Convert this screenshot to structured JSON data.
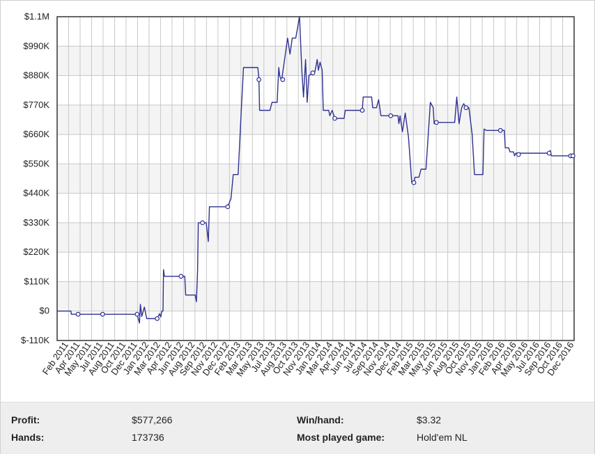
{
  "chart_data": {
    "type": "line",
    "title": "",
    "xlabel": "",
    "ylabel": "",
    "ylim": [
      -110000,
      1100000
    ],
    "grid": true,
    "y_ticks": [
      "$1.1M",
      "$990K",
      "$880K",
      "$770K",
      "$660K",
      "$550K",
      "$440K",
      "$330K",
      "$220K",
      "$110K",
      "$0",
      "$-110K"
    ],
    "x_ticks": [
      "Feb 2011",
      "Apr 2011",
      "May 2011",
      "Jul 2011",
      "Aug 2011",
      "Oct 2011",
      "Dec 2011",
      "Jan 2012",
      "Mar 2012",
      "Apr 2012",
      "Jun 2012",
      "Aug 2012",
      "Sep 2012",
      "Nov 2012",
      "Dec 2012",
      "Feb 2013",
      "Mar 2013",
      "May 2013",
      "Jul 2013",
      "Aug 2013",
      "Oct 2013",
      "Nov 2013",
      "Jan 2014",
      "Mar 2014",
      "Apr 2014",
      "Jun 2014",
      "Jul 2014",
      "Sep 2014",
      "Nov 2014",
      "Dec 2014",
      "Feb 2015",
      "Mar 2015",
      "May 2015",
      "Jun 2015",
      "Aug 2015",
      "Oct 2015",
      "Nov 2015",
      "Jan 2016",
      "Feb 2016",
      "Apr 2016",
      "May 2016",
      "Jul 2016",
      "Sep 2016",
      "Oct 2016",
      "Dec 2016"
    ],
    "series": [
      {
        "color": "#2e3192",
        "points": [
          [
            "2011-01-01",
            0
          ],
          [
            "2011-03-01",
            0
          ],
          [
            "2011-03-03",
            -12000
          ],
          [
            "2011-12-10",
            -12000
          ],
          [
            "2011-12-20",
            -45000
          ],
          [
            "2011-12-24",
            25000
          ],
          [
            "2011-12-30",
            -20000
          ],
          [
            "2012-01-10",
            15000
          ],
          [
            "2012-01-20",
            -28000
          ],
          [
            "2012-03-05",
            -28000
          ],
          [
            "2012-03-15",
            -10000
          ],
          [
            "2012-03-20",
            -22000
          ],
          [
            "2012-03-25",
            0
          ],
          [
            "2012-03-30",
            0
          ],
          [
            "2012-04-01",
            155000
          ],
          [
            "2012-04-05",
            130000
          ],
          [
            "2012-06-15",
            130000
          ],
          [
            "2012-07-01",
            130000
          ],
          [
            "2012-07-05",
            60000
          ],
          [
            "2012-08-15",
            60000
          ],
          [
            "2012-08-20",
            35000
          ],
          [
            "2012-08-25",
            150000
          ],
          [
            "2012-08-28",
            330000
          ],
          [
            "2012-10-01",
            330000
          ],
          [
            "2012-10-10",
            260000
          ],
          [
            "2012-10-15",
            390000
          ],
          [
            "2013-01-01",
            390000
          ],
          [
            "2013-01-15",
            420000
          ],
          [
            "2013-01-25",
            510000
          ],
          [
            "2013-02-15",
            510000
          ],
          [
            "2013-03-01",
            760000
          ],
          [
            "2013-03-10",
            910000
          ],
          [
            "2013-05-10",
            910000
          ],
          [
            "2013-05-15",
            870000
          ],
          [
            "2013-05-18",
            750000
          ],
          [
            "2013-07-01",
            750000
          ],
          [
            "2013-07-10",
            780000
          ],
          [
            "2013-08-01",
            780000
          ],
          [
            "2013-08-08",
            910000
          ],
          [
            "2013-08-12",
            880000
          ],
          [
            "2013-08-20",
            860000
          ],
          [
            "2013-09-15",
            1020000
          ],
          [
            "2013-09-25",
            960000
          ],
          [
            "2013-10-05",
            1020000
          ],
          [
            "2013-10-20",
            1020000
          ],
          [
            "2013-11-05",
            1100000
          ],
          [
            "2013-11-15",
            900000
          ],
          [
            "2013-11-22",
            800000
          ],
          [
            "2013-12-01",
            940000
          ],
          [
            "2013-12-08",
            780000
          ],
          [
            "2013-12-15",
            880000
          ],
          [
            "2014-01-01",
            890000
          ],
          [
            "2014-01-10",
            895000
          ],
          [
            "2014-01-20",
            940000
          ],
          [
            "2014-01-25",
            900000
          ],
          [
            "2014-02-01",
            930000
          ],
          [
            "2014-02-10",
            900000
          ],
          [
            "2014-02-15",
            750000
          ],
          [
            "2014-03-10",
            750000
          ],
          [
            "2014-03-15",
            730000
          ],
          [
            "2014-03-25",
            750000
          ],
          [
            "2014-04-05",
            720000
          ],
          [
            "2014-05-15",
            720000
          ],
          [
            "2014-05-20",
            750000
          ],
          [
            "2014-07-15",
            750000
          ],
          [
            "2014-08-01",
            750000
          ],
          [
            "2014-08-05",
            800000
          ],
          [
            "2014-09-10",
            800000
          ],
          [
            "2014-09-15",
            760000
          ],
          [
            "2014-10-01",
            760000
          ],
          [
            "2014-10-10",
            790000
          ],
          [
            "2014-10-20",
            730000
          ],
          [
            "2014-12-20",
            730000
          ],
          [
            "2015-01-01",
            730000
          ],
          [
            "2015-01-05",
            700000
          ],
          [
            "2015-01-10",
            730000
          ],
          [
            "2015-01-20",
            670000
          ],
          [
            "2015-02-01",
            740000
          ],
          [
            "2015-02-15",
            650000
          ],
          [
            "2015-03-01",
            480000
          ],
          [
            "2015-03-10",
            475000
          ],
          [
            "2015-03-15",
            500000
          ],
          [
            "2015-04-01",
            500000
          ],
          [
            "2015-04-10",
            530000
          ],
          [
            "2015-05-01",
            530000
          ],
          [
            "2015-05-20",
            780000
          ],
          [
            "2015-06-01",
            760000
          ],
          [
            "2015-06-05",
            700000
          ],
          [
            "2015-06-15",
            705000
          ],
          [
            "2015-09-01",
            705000
          ],
          [
            "2015-09-10",
            800000
          ],
          [
            "2015-09-20",
            700000
          ],
          [
            "2015-10-01",
            760000
          ],
          [
            "2015-10-10",
            775000
          ],
          [
            "2015-10-20",
            760000
          ],
          [
            "2015-11-01",
            760000
          ],
          [
            "2015-11-15",
            660000
          ],
          [
            "2015-11-25",
            510000
          ],
          [
            "2015-12-31",
            510000
          ],
          [
            "2016-01-05",
            680000
          ],
          [
            "2016-01-15",
            675000
          ],
          [
            "2016-03-15",
            675000
          ],
          [
            "2016-04-01",
            675000
          ],
          [
            "2016-04-05",
            610000
          ],
          [
            "2016-04-20",
            610000
          ],
          [
            "2016-04-25",
            595000
          ],
          [
            "2016-05-10",
            595000
          ],
          [
            "2016-05-15",
            580000
          ],
          [
            "2016-05-20",
            590000
          ],
          [
            "2016-06-01",
            590000
          ],
          [
            "2016-10-10",
            590000
          ],
          [
            "2016-10-15",
            600000
          ],
          [
            "2016-10-20",
            580000
          ],
          [
            "2016-12-31",
            580000
          ],
          [
            "2017-01-20",
            577266
          ]
        ],
        "markers": [
          [
            "2011-04-01",
            -12000
          ],
          [
            "2011-07-15",
            -12000
          ],
          [
            "2011-12-10",
            -12000
          ],
          [
            "2012-03-05",
            -28000
          ],
          [
            "2012-06-15",
            130000
          ],
          [
            "2012-09-15",
            330000
          ],
          [
            "2013-01-01",
            390000
          ],
          [
            "2013-05-15",
            865000
          ],
          [
            "2013-08-25",
            865000
          ],
          [
            "2014-01-01",
            890000
          ],
          [
            "2014-04-05",
            720000
          ],
          [
            "2014-08-01",
            750000
          ],
          [
            "2014-12-01",
            730000
          ],
          [
            "2015-03-10",
            480000
          ],
          [
            "2015-06-15",
            705000
          ],
          [
            "2015-10-20",
            760000
          ],
          [
            "2016-03-15",
            675000
          ],
          [
            "2016-06-01",
            585000
          ],
          [
            "2016-10-10",
            590000
          ],
          [
            "2017-01-10",
            580000
          ],
          [
            "2017-01-20",
            580000
          ]
        ]
      }
    ]
  },
  "stats": {
    "profit_label": "Profit:",
    "profit_value": "$577,266",
    "hands_label": "Hands:",
    "hands_value": "173736",
    "winhand_label": "Win/hand:",
    "winhand_value": "$3.32",
    "game_label": "Most played game:",
    "game_value": "Hold'em NL"
  },
  "colors": {
    "line": "#2e3192",
    "grid": "#c8c8c8",
    "band": "#f4f4f4",
    "stats_bg": "#eeeeee"
  }
}
